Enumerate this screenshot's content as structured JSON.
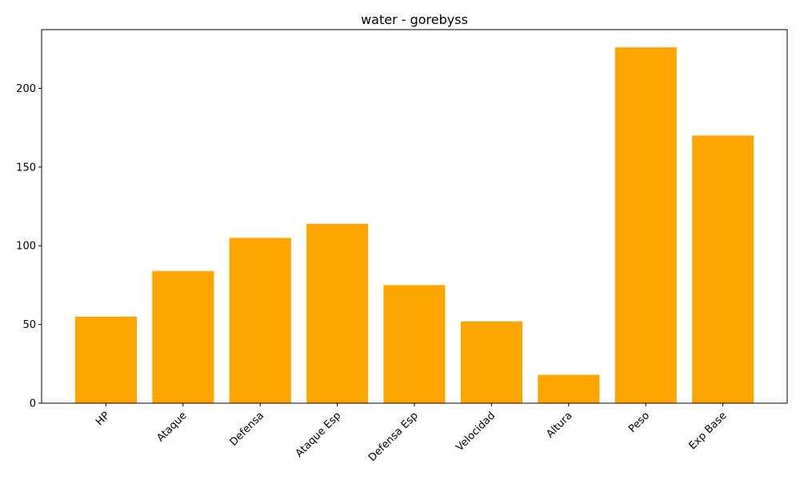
{
  "chart_data": {
    "type": "bar",
    "title": "water - gorebyss",
    "xlabel": "",
    "ylabel": "",
    "categories": [
      "HP",
      "Ataque",
      "Defensa",
      "Ataque Esp",
      "Defensa Esp",
      "Velocidad",
      "Altura",
      "Peso",
      "Exp Base"
    ],
    "values": [
      55,
      84,
      105,
      114,
      75,
      52,
      18,
      226,
      170
    ],
    "ylim": [
      0,
      237.3
    ],
    "yticks": [
      0,
      50,
      100,
      150,
      200
    ],
    "bar_color": "#ffa500",
    "grid": false,
    "legend": "none"
  }
}
